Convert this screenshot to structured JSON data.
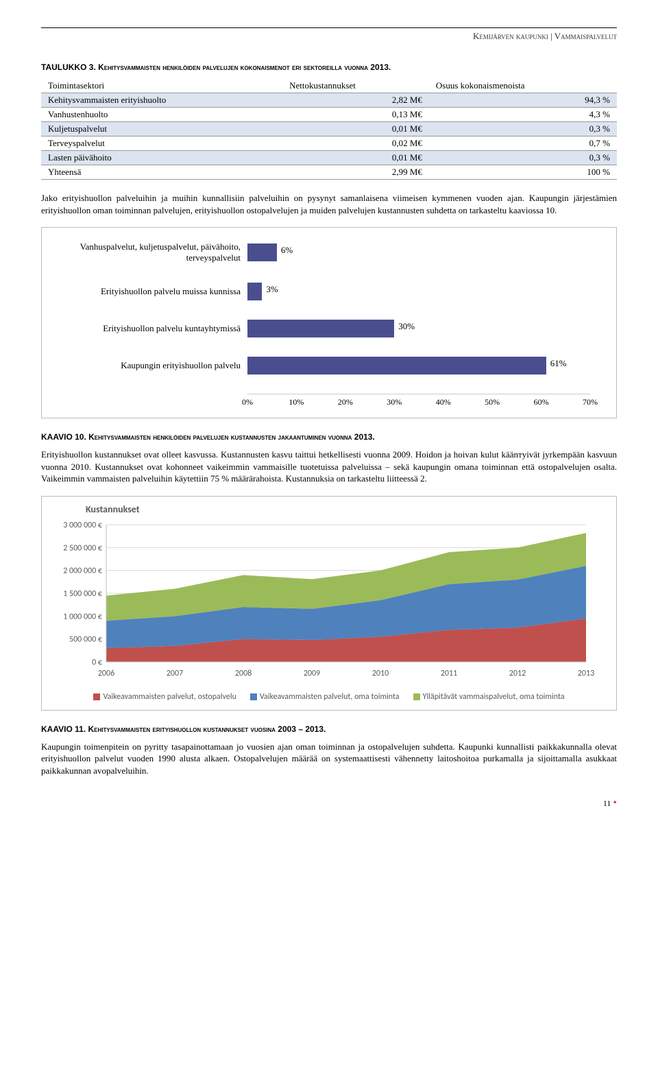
{
  "header": "Kemijärven kaupunki | Vammaispalvelut",
  "table_caption": "TAULUKKO 3. Kehitysvammaisten henkilöiden palvelujen kokonaismenot eri sektoreilla vuonna 2013.",
  "table": {
    "columns": [
      "Toimintasektori",
      "Nettokustannukset",
      "Osuus kokonaismenoista"
    ],
    "rows": [
      {
        "c0": "Kehitysvammaisten erityishuolto",
        "c1": "2,82 M€",
        "c2": "94,3 %",
        "alt": true
      },
      {
        "c0": "Vanhustenhuolto",
        "c1": "0,13 M€",
        "c2": "4,3 %",
        "alt": false
      },
      {
        "c0": "Kuljetuspalvelut",
        "c1": "0,01 M€",
        "c2": "0,3 %",
        "alt": true
      },
      {
        "c0": "Terveyspalvelut",
        "c1": "0,02 M€",
        "c2": "0,7 %",
        "alt": false
      },
      {
        "c0": "Lasten päivähoito",
        "c1": "0,01 M€",
        "c2": "0,3 %",
        "alt": true
      },
      {
        "c0": "Yhteensä",
        "c1": "2,99 M€",
        "c2": "100 %",
        "alt": false
      }
    ],
    "alt_bg": "#dce4f0"
  },
  "para1": "Jako erityishuollon palveluihin ja muihin kunnallisiin palveluihin on pysynyt samanlaisena viimeisen kymmenen vuoden ajan. Kaupungin järjestämien erityishuollon oman toiminnan palvelujen, erityishuollon ostopalvelujen ja muiden palvelujen kustannusten suhdetta on tarkasteltu kaaviossa 10.",
  "barchart": {
    "type": "bar-horizontal",
    "bar_color": "#4a4e8f",
    "grid_color": "#dddddd",
    "label_fontsize": 13,
    "items": [
      {
        "label": "Vanhuspalvelut, kuljetuspalvelut, päivähoito, terveyspalvelut",
        "value": 6,
        "text": "6%"
      },
      {
        "label": "Erityishuollon palvelu muissa kunnissa",
        "value": 3,
        "text": "3%"
      },
      {
        "label": "Erityishuollon palvelu kuntayhtymissä",
        "value": 30,
        "text": "30%"
      },
      {
        "label": "Kaupungin erityishuollon palvelu",
        "value": 61,
        "text": "61%"
      }
    ],
    "xmax": 70,
    "xticks": [
      0,
      10,
      20,
      30,
      40,
      50,
      60,
      70
    ],
    "xticklabels": [
      "0%",
      "10%",
      "20%",
      "30%",
      "40%",
      "50%",
      "60%",
      "70%"
    ]
  },
  "kaavio10": "KAAVIO 10. Kehitysvammaisten henkilöiden palvelujen kustannusten jakaantuminen vuonna 2013.",
  "para2": "Erityishuollon kustannukset ovat olleet kasvussa. Kustannusten kasvu taittui hetkellisesti vuonna 2009. Hoidon ja hoivan kulut käänтyivät jyrkempään kasvuun vuonna 2010. Kustannukset ovat kohonneet vaikeimmin vammaisille tuotetuissa palveluissa – sekä kaupungin omana toiminnan että ostopalvelujen osalta. Vaikeimmin vammaisten palveluihin käytettiin 75 % määrärahoista. Kustannuksia on tarkasteltu liitteessä 2.",
  "areachart": {
    "type": "area-stacked",
    "title": "Kustannukset",
    "ymax": 3000000,
    "yticks": [
      0,
      500000,
      1000000,
      1500000,
      2000000,
      2500000,
      3000000
    ],
    "yticklabels": [
      "0 €",
      "500 000 €",
      "1 000 000 €",
      "1 500 000 €",
      "2 000 000 €",
      "2 500 000 €",
      "3 000 000 €"
    ],
    "x": [
      "2006",
      "2007",
      "2008",
      "2009",
      "2010",
      "2011",
      "2012",
      "2013"
    ],
    "series": [
      {
        "name": "Vaikeavammaisten palvelut, ostopalvelu",
        "color": "#c0504d",
        "values": [
          300000,
          350000,
          500000,
          480000,
          550000,
          700000,
          750000,
          950000
        ]
      },
      {
        "name": "Vaikeavammaisten palvelut, oma toiminta",
        "color": "#4f81bd",
        "values": [
          600000,
          650000,
          700000,
          680000,
          800000,
          1000000,
          1050000,
          1150000
        ]
      },
      {
        "name": "Ylläpitävät vammaispalvelut, oma toiminta",
        "color": "#9bbb59",
        "values": [
          550000,
          600000,
          700000,
          650000,
          650000,
          700000,
          700000,
          720000
        ]
      }
    ],
    "axis_color": "#bfbfbf",
    "text_color": "#595959",
    "grid_color": "#d9d9d9",
    "tick_fontsize": 12
  },
  "kaavio11": "KAAVIO 11. Kehitysvammaisten erityishuollon kustannukset vuosina 2003 – 2013.",
  "para3": "Kaupungin toimenpitein on pyritty tasapainottamaan jo vuosien ajan oman toiminnan ja ostopalvelujen suhdetta. Kaupunki kunnallisti paikkakunnalla olevat erityishuollon palvelut vuoden 1990 alusta alkaen. Ostopalvelujen määrää on systemaattisesti vähennetty laitoshoitoa purkamalla ja sijoittamalla asukkaat paikkakunnan avopalveluihin.",
  "page_number": "11"
}
